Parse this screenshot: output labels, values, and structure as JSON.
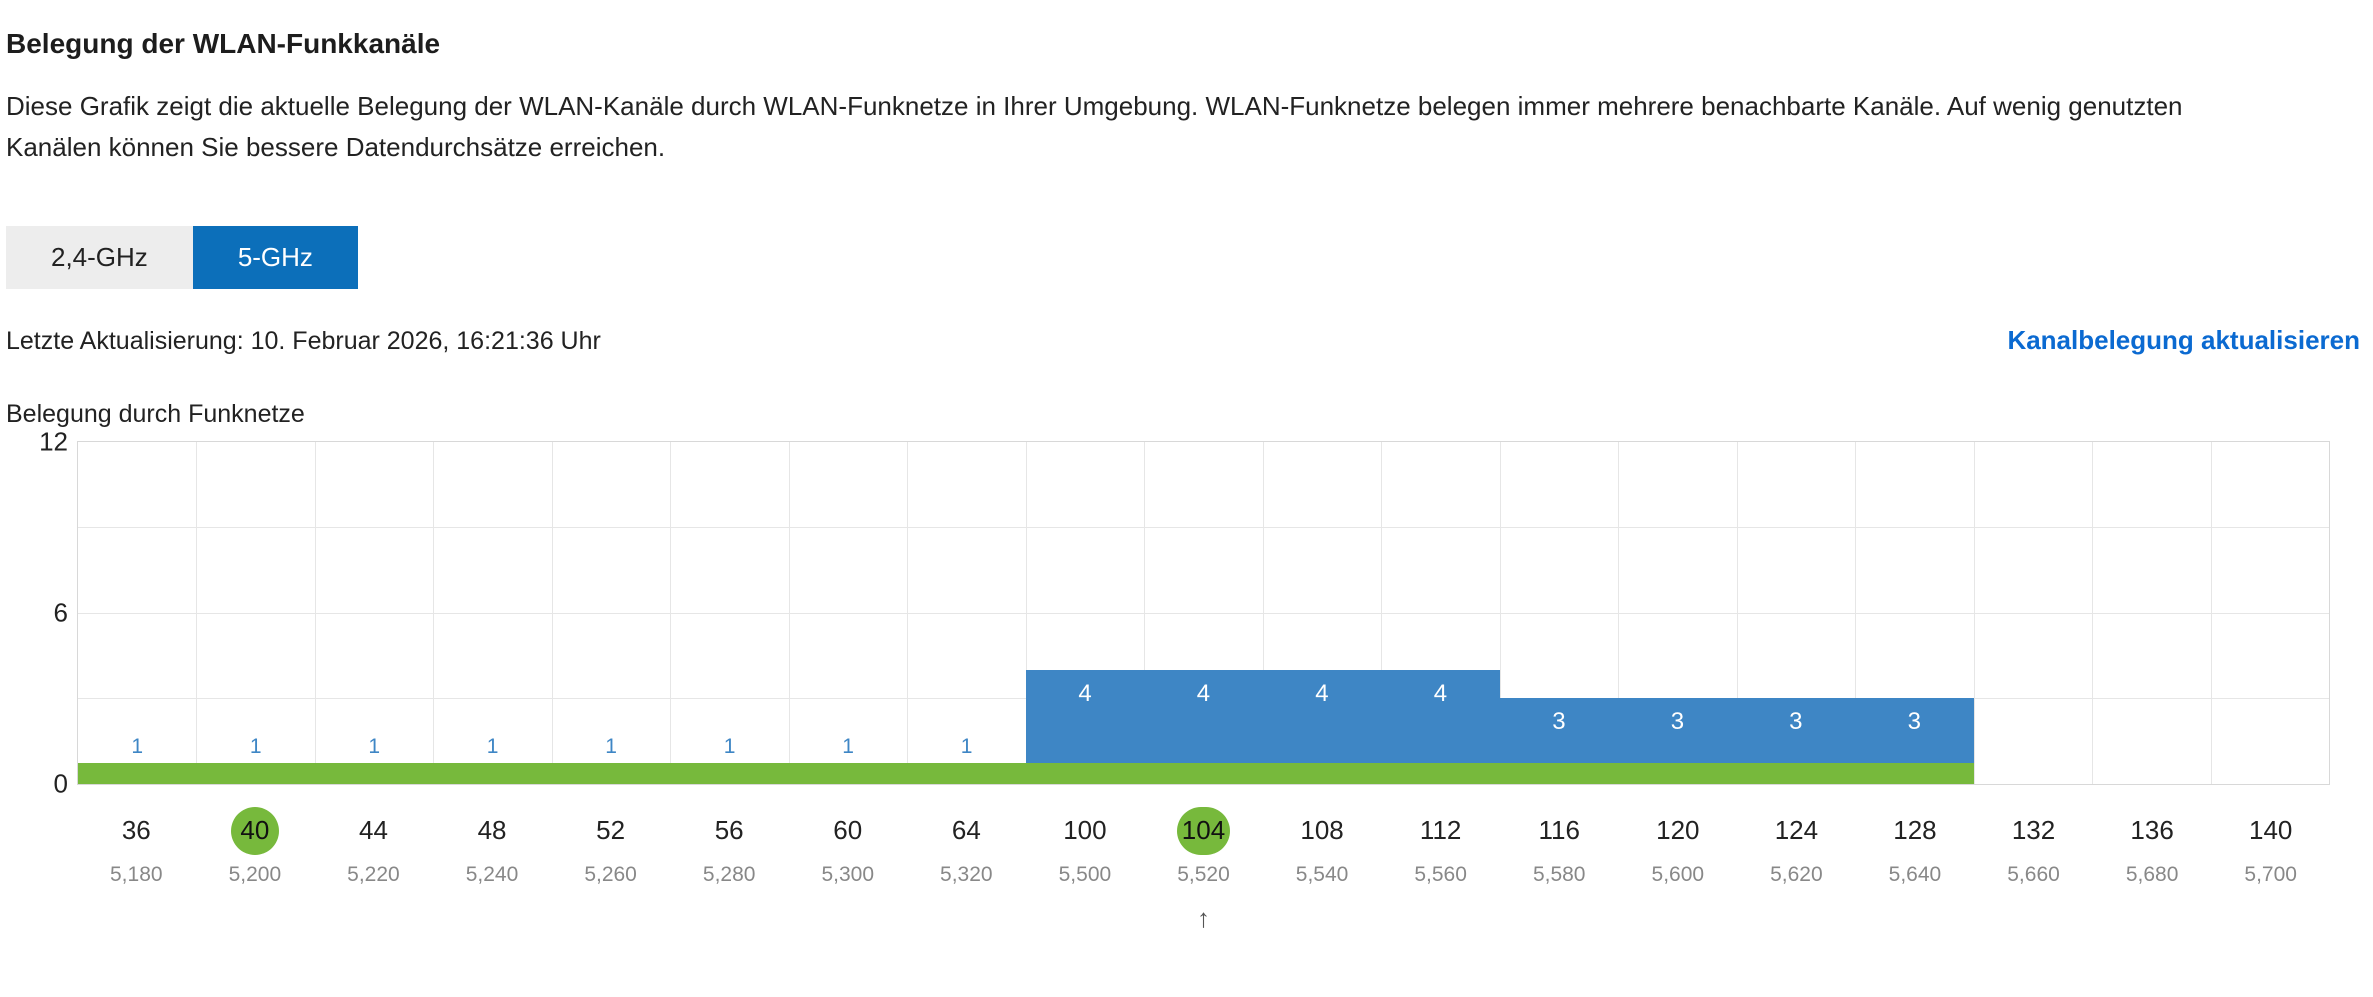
{
  "page": {
    "title": "Belegung der WLAN-Funkkanäle",
    "description": "Diese Grafik zeigt die aktuelle Belegung der WLAN-Kanäle durch WLAN-Funknetze in Ihrer Umgebung. WLAN-Funknetze belegen immer mehrere benachbarte Kanäle. Auf wenig genutzten Kanälen können Sie bessere Datendurchsätze erreichen."
  },
  "tabs": [
    {
      "label": "2,4-GHz",
      "active": false
    },
    {
      "label": "5-GHz",
      "active": true
    }
  ],
  "status": {
    "last_update": "Letzte Aktualisierung: 10. Februar 2026, 16:21:36 Uhr",
    "refresh_link": "Kanalbelegung aktualisieren"
  },
  "chart_data": {
    "type": "bar",
    "ylabel": "Belegung durch Funknetze",
    "ylim": [
      0,
      12
    ],
    "y_tick_labels": [
      0,
      6,
      12
    ],
    "y_gridlines": [
      3,
      6,
      9
    ],
    "grid": true,
    "legend_position": "none",
    "categories": [
      36,
      40,
      44,
      48,
      52,
      56,
      60,
      64,
      100,
      104,
      108,
      112,
      116,
      120,
      124,
      128,
      132,
      136,
      140
    ],
    "frequency_labels": [
      "5,180",
      "5,200",
      "5,220",
      "5,240",
      "5,260",
      "5,280",
      "5,300",
      "5,320",
      "5,500",
      "5,520",
      "5,540",
      "5,560",
      "5,580",
      "5,600",
      "5,620",
      "5,640",
      "5,660",
      "5,680",
      "5,700"
    ],
    "values": [
      1,
      1,
      1,
      1,
      1,
      1,
      1,
      1,
      4,
      4,
      4,
      4,
      3,
      3,
      3,
      3,
      0,
      0,
      0
    ],
    "highlighted_channels": [
      40,
      104
    ],
    "own_network_band": {
      "from_channel": 36,
      "to_channel": 128
    },
    "current_channel_marker": {
      "channel": 104,
      "glyph": "↑"
    }
  },
  "colors": {
    "accent_blue": "#0c6fba",
    "link_blue": "#0b6ad1",
    "bar_blue": "#3e86c5",
    "green": "#77b93c",
    "tab_bg": "#ededed",
    "grid": "#e6e6e6",
    "plot_border": "#d8d8d8",
    "text": "#222222",
    "muted": "#888888"
  }
}
